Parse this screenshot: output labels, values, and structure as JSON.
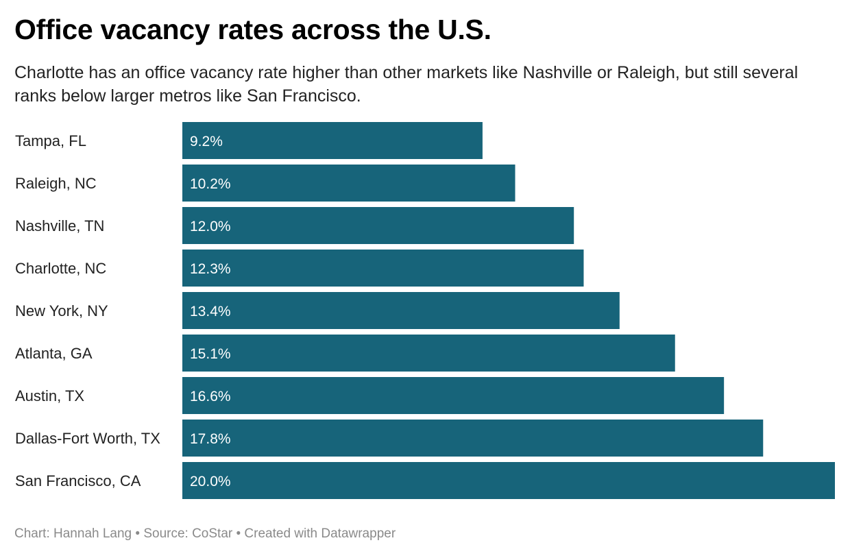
{
  "header": {
    "title": "Office vacancy rates across the U.S.",
    "subtitle": "Charlotte has an office vacancy rate higher than other markets like Nashville or Raleigh, but still several ranks below larger metros like San Francisco."
  },
  "footer": {
    "credit": "Chart: Hannah Lang • Source: CoStar • Created with Datawrapper"
  },
  "colors": {
    "bar": "#17647a"
  },
  "chart_data": {
    "type": "bar",
    "orientation": "horizontal",
    "categories": [
      "Tampa, FL",
      "Raleigh, NC",
      "Nashville, TN",
      "Charlotte, NC",
      "New York, NY",
      "Atlanta, GA",
      "Austin, TX",
      "Dallas-Fort Worth, TX",
      "San Francisco, CA"
    ],
    "values": [
      9.2,
      10.2,
      12.0,
      12.3,
      13.4,
      15.1,
      16.6,
      17.8,
      20.0
    ],
    "value_labels": [
      "9.2%",
      "10.2%",
      "12.0%",
      "12.3%",
      "13.4%",
      "15.1%",
      "16.6%",
      "17.8%",
      "20.0%"
    ],
    "title": "Office vacancy rates across the U.S.",
    "xlabel": "",
    "ylabel": "",
    "xlim": [
      0,
      20
    ],
    "grid": false,
    "legend": "none"
  }
}
